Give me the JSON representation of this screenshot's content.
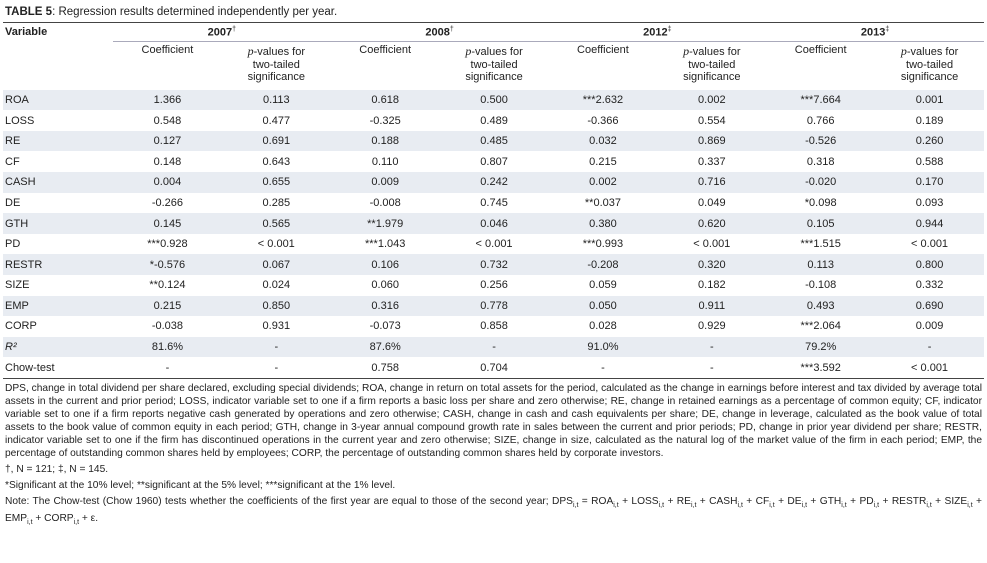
{
  "title": {
    "label": "TABLE 5",
    "text": ": Regression results determined independently per year."
  },
  "header": {
    "variable": "Variable",
    "years": [
      {
        "year": "2007",
        "mark": "†"
      },
      {
        "year": "2008",
        "mark": "†"
      },
      {
        "year": "2012",
        "mark": "‡"
      },
      {
        "year": "2013",
        "mark": "‡"
      }
    ],
    "coefficient": "Coefficient",
    "p_value": {
      "italic": "p",
      "text": "-values for two-tailed significance"
    }
  },
  "table": {
    "rows": [
      [
        "ROA",
        "1.366",
        "0.113",
        "0.618",
        "0.500",
        "***2.632",
        "0.002",
        "***7.664",
        "0.001"
      ],
      [
        "LOSS",
        "0.548",
        "0.477",
        "-0.325",
        "0.489",
        "-0.366",
        "0.554",
        "0.766",
        "0.189"
      ],
      [
        "RE",
        "0.127",
        "0.691",
        "0.188",
        "0.485",
        "0.032",
        "0.869",
        "-0.526",
        "0.260"
      ],
      [
        "CF",
        "0.148",
        "0.643",
        "0.110",
        "0.807",
        "0.215",
        "0.337",
        "0.318",
        "0.588"
      ],
      [
        "CASH",
        "0.004",
        "0.655",
        "0.009",
        "0.242",
        "0.002",
        "0.716",
        "-0.020",
        "0.170"
      ],
      [
        "DE",
        "-0.266",
        "0.285",
        "-0.008",
        "0.745",
        "**0.037",
        "0.049",
        "*0.098",
        "0.093"
      ],
      [
        "GTH",
        "0.145",
        "0.565",
        "**1.979",
        "0.046",
        "0.380",
        "0.620",
        "0.105",
        "0.944"
      ],
      [
        "PD",
        "***0.928",
        "< 0.001",
        "***1.043",
        "< 0.001",
        "***0.993",
        "< 0.001",
        "***1.515",
        "< 0.001"
      ],
      [
        "RESTR",
        "*-0.576",
        "0.067",
        "0.106",
        "0.732",
        "-0.208",
        "0.320",
        "0.113",
        "0.800"
      ],
      [
        "SIZE",
        "**0.124",
        "0.024",
        "0.060",
        "0.256",
        "0.059",
        "0.182",
        "-0.108",
        "0.332"
      ],
      [
        "EMP",
        "0.215",
        "0.850",
        "0.316",
        "0.778",
        "0.050",
        "0.911",
        "0.493",
        "0.690"
      ],
      [
        "CORP",
        "-0.038",
        "0.931",
        "-0.073",
        "0.858",
        "0.028",
        "0.929",
        "***2.064",
        "0.009"
      ],
      [
        "R²",
        "81.6%",
        "-",
        "87.6%",
        "-",
        "91.0%",
        "-",
        "79.2%",
        "-"
      ],
      [
        "Chow-test",
        "-",
        "-",
        "0.758",
        "0.704",
        "-",
        "-",
        "***3.592",
        "< 0.001"
      ]
    ]
  },
  "footnotes": {
    "abbreviations": "DPS, change in total dividend per share declared, excluding special dividends; ROA, change in return on total assets for the period, calculated as the change in earnings before interest and tax divided by average total assets in the current and prior period; LOSS, indicator variable set to one if a firm reports a basic loss per share and zero otherwise; RE, change in retained earnings as a percentage of common equity; CF, indicator variable set to one if a firm reports negative cash generated by operations and zero otherwise; CASH, change in cash and cash equivalents per share; DE, change in leverage, calculated as the book value of total assets to the book value of common equity in each period; GTH, change in 3-year annual compound growth rate in sales between the current and prior periods; PD, change in prior year dividend per share; RESTR, indicator variable set to one if the firm has discontinued operations in the current year and zero otherwise; SIZE, change in size, calculated as the natural log of the market value of the firm in each period; EMP, the percentage of outstanding common shares held by employees; CORP, the percentage of outstanding common shares held by corporate investors.",
    "samples": "†, N = 121; ‡, N = 145.",
    "significance": "*Significant at the 10% level; **significant at the 5% level; ***significant at the 1% level.",
    "note": "Note: The Chow-test (Chow 1960) tests whether the coefficients of the first year are equal to those of the second year; ",
    "formula": [
      {
        "text": "DPS",
        "sub": "i,t"
      },
      {
        "text": " = "
      },
      {
        "text": "ROA",
        "sub": "i,t"
      },
      {
        "text": " + "
      },
      {
        "text": "LOSS",
        "sub": "i,t"
      },
      {
        "text": " + "
      },
      {
        "text": "RE",
        "sub": "i,t"
      },
      {
        "text": " + "
      },
      {
        "text": "CASH",
        "sub": "i,t"
      },
      {
        "text": " + "
      },
      {
        "text": "CF",
        "sub": "i,t"
      },
      {
        "text": " + "
      },
      {
        "text": "DE",
        "sub": "i,t"
      },
      {
        "text": " + "
      },
      {
        "text": "GTH",
        "sub": "i,t"
      },
      {
        "text": " + "
      },
      {
        "text": "PD",
        "sub": "i,t"
      },
      {
        "text": " + "
      },
      {
        "text": "RESTR",
        "sub": "i,t"
      },
      {
        "text": " + "
      },
      {
        "text": "SIZE",
        "sub": "i,t"
      },
      {
        "text": " + "
      },
      {
        "text": "EMP",
        "sub": "i,t"
      },
      {
        "text": " + "
      },
      {
        "text": "CORP",
        "sub": "i,t"
      },
      {
        "text": " + ε."
      }
    ]
  }
}
